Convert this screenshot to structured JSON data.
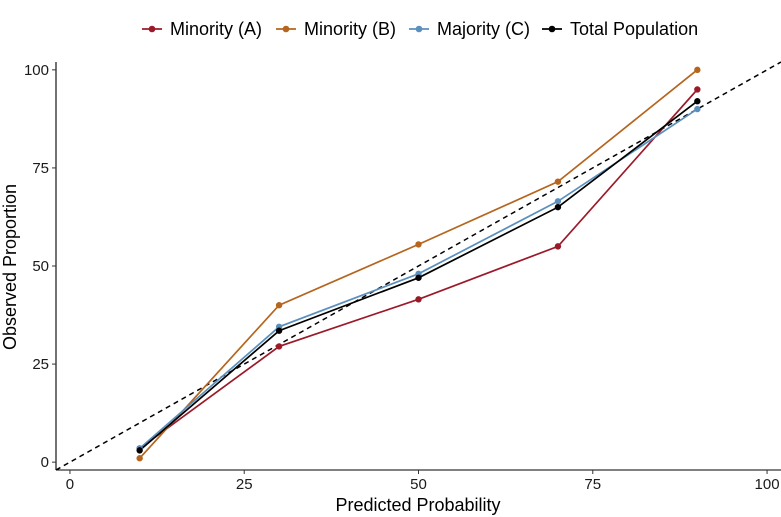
{
  "chart_data": {
    "type": "line",
    "xlabel": "Predicted Probability",
    "ylabel": "Observed Proportion",
    "xlim": [
      -2,
      102
    ],
    "ylim": [
      -2,
      102
    ],
    "x_ticks": [
      0,
      25,
      50,
      75,
      100
    ],
    "y_ticks": [
      0,
      25,
      50,
      75,
      100
    ],
    "x_tick_labels": [
      "0",
      "25",
      "50",
      "75",
      "100"
    ],
    "y_tick_labels": [
      "0",
      "25",
      "50",
      "75",
      "100"
    ],
    "grid": false,
    "legend_position": "top",
    "reference_line": {
      "style": "dashed",
      "slope": 1,
      "intercept": 0,
      "color": "#000000"
    },
    "x": [
      10,
      30,
      50,
      70,
      90
    ],
    "series": [
      {
        "name": "Minority (A)",
        "color": "#9b1a2a",
        "values": [
          3.5,
          29.5,
          41.5,
          55,
          95
        ]
      },
      {
        "name": "Minority (B)",
        "color": "#b5651d",
        "values": [
          1,
          40,
          55.5,
          71.5,
          100
        ]
      },
      {
        "name": "Majority (C)",
        "color": "#5b8fbd",
        "values": [
          3.5,
          34.5,
          48,
          66.5,
          90
        ]
      },
      {
        "name": "Total Population",
        "color": "#000000",
        "values": [
          3,
          33.5,
          47,
          65,
          92
        ]
      }
    ]
  }
}
